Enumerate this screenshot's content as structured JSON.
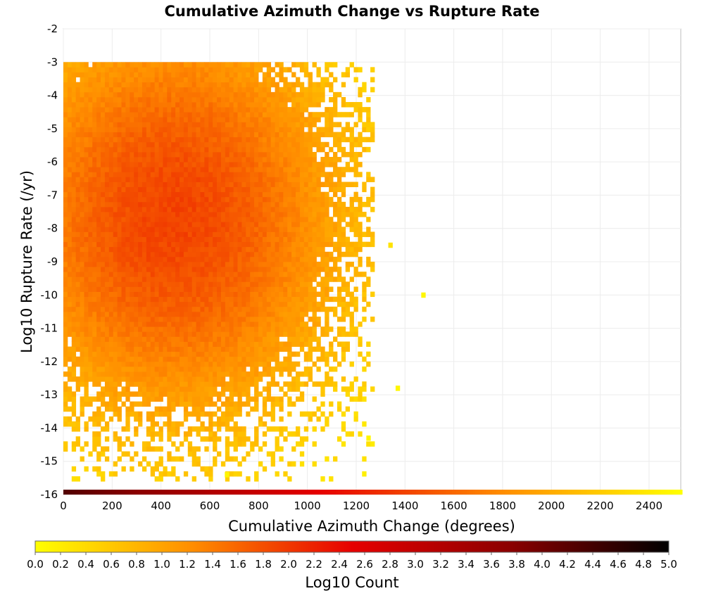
{
  "chart_data": {
    "type": "heatmap",
    "title": "Cumulative Azimuth Change vs Rupture Rate",
    "xlabel": "Cumulative Azimuth Change (degrees)",
    "ylabel": "Log10 Rupture Rate (/yr)",
    "xlim": [
      0,
      2530
    ],
    "ylim": [
      -16,
      -2
    ],
    "x_ticks": [
      0,
      200,
      400,
      600,
      800,
      1000,
      1200,
      1400,
      1600,
      1800,
      2000,
      2200,
      2400
    ],
    "y_ticks": [
      -2,
      -3,
      -4,
      -5,
      -6,
      -7,
      -8,
      -9,
      -10,
      -11,
      -12,
      -13,
      -14,
      -15,
      -16
    ],
    "grid": true,
    "x_bin_width": 17,
    "y_bin_width": 0.15,
    "approx_density": {
      "peak_center": {
        "x": 450,
        "y": -7.7,
        "log10_count": 1.9
      },
      "note_extent_x": [
        0,
        1250
      ],
      "note_extent_y": [
        -15.5,
        -3.2
      ]
    },
    "outlier_cells": [
      {
        "x": 1340,
        "y": -8.5,
        "log10_count": 0.3
      },
      {
        "x": 1475,
        "y": -10.0,
        "log10_count": 0.1
      },
      {
        "x": 1370,
        "y": -12.8,
        "log10_count": 0.1
      },
      {
        "x": 1250,
        "y": -14.3,
        "log10_count": 0.1
      },
      {
        "x": 670,
        "y": -15.4,
        "log10_count": 0.1
      }
    ],
    "colorbar": {
      "label": "Log10 Count",
      "min": 0.0,
      "max": 5.0,
      "ticks": [
        "0.0",
        "0.2",
        "0.4",
        "0.6",
        "0.8",
        "1.0",
        "1.2",
        "1.4",
        "1.6",
        "1.8",
        "2.0",
        "2.2",
        "2.4",
        "2.6",
        "2.8",
        "3.0",
        "3.2",
        "3.4",
        "3.6",
        "3.8",
        "4.0",
        "4.2",
        "4.4",
        "4.6",
        "4.8",
        "5.0"
      ],
      "colors": [
        "#ffff00",
        "#ff8c00",
        "#e60000",
        "#8b0000",
        "#000000"
      ]
    }
  }
}
